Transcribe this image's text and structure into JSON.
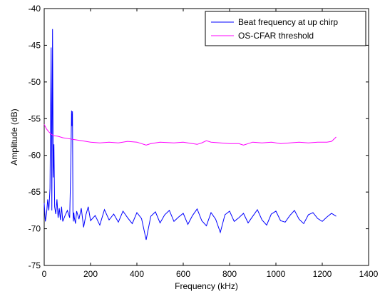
{
  "chart_data": {
    "type": "line",
    "xlabel": "Frequency (kHz)",
    "ylabel": "Amplitude (dB)",
    "xlim": [
      0,
      1400
    ],
    "ylim": [
      -75,
      -40
    ],
    "x_ticks": [
      "0",
      "200",
      "400",
      "600",
      "800",
      "1000",
      "1200",
      "1400"
    ],
    "y_ticks": [
      "-40",
      "-45",
      "-50",
      "-55",
      "-60",
      "-65",
      "-70",
      "-75"
    ],
    "grid": false,
    "legend_position": "top-right",
    "series": [
      {
        "name": "Beat frequency at up chirp",
        "color": "#0000ff",
        "x": [
          0,
          5,
          10,
          15,
          20,
          25,
          30,
          33,
          36,
          39,
          42,
          45,
          50,
          55,
          60,
          65,
          70,
          75,
          80,
          90,
          100,
          110,
          115,
          118,
          120,
          122,
          124,
          126,
          128,
          130,
          135,
          140,
          150,
          160,
          170,
          180,
          190,
          200,
          220,
          240,
          260,
          280,
          300,
          320,
          340,
          360,
          380,
          400,
          420,
          440,
          460,
          480,
          500,
          520,
          540,
          560,
          580,
          600,
          620,
          640,
          660,
          680,
          700,
          720,
          740,
          760,
          780,
          800,
          820,
          840,
          860,
          880,
          900,
          920,
          940,
          960,
          980,
          1000,
          1020,
          1040,
          1060,
          1080,
          1100,
          1120,
          1140,
          1160,
          1180,
          1200,
          1220,
          1240,
          1260
        ],
        "y": [
          -66.5,
          -69.0,
          -68.0,
          -66.0,
          -67.5,
          -64.5,
          -45.3,
          -67.5,
          -42.8,
          -63.0,
          -58.5,
          -67.0,
          -68.0,
          -66.0,
          -68.5,
          -67.2,
          -68.8,
          -67.0,
          -69.0,
          -68.2,
          -67.5,
          -68.5,
          -61.0,
          -53.9,
          -56.0,
          -54.0,
          -67.5,
          -69.0,
          -67.8,
          -68.5,
          -69.3,
          -67.6,
          -68.7,
          -67.2,
          -69.8,
          -68.1,
          -67.0,
          -68.9,
          -68.2,
          -69.5,
          -67.4,
          -68.8,
          -68.0,
          -69.1,
          -67.6,
          -68.5,
          -69.3,
          -67.8,
          -68.6,
          -71.5,
          -68.3,
          -67.7,
          -69.2,
          -68.1,
          -67.5,
          -69.0,
          -68.4,
          -67.9,
          -69.4,
          -68.2,
          -67.3,
          -68.9,
          -69.6,
          -67.8,
          -68.7,
          -70.5,
          -68.1,
          -67.6,
          -69.0,
          -68.5,
          -67.9,
          -69.2,
          -68.3,
          -67.4,
          -68.8,
          -69.5,
          -68.0,
          -67.6,
          -68.9,
          -69.1,
          -68.2,
          -67.5,
          -68.7,
          -69.3,
          -68.1,
          -67.8,
          -68.6,
          -69.0,
          -68.4,
          -67.9,
          -68.3
        ]
      },
      {
        "name": "OS-CFAR threshold",
        "color": "#ff00ff",
        "x": [
          0,
          10,
          20,
          30,
          40,
          60,
          80,
          100,
          120,
          140,
          160,
          180,
          200,
          240,
          280,
          320,
          360,
          400,
          440,
          460,
          500,
          560,
          600,
          640,
          660,
          680,
          700,
          720,
          760,
          800,
          840,
          860,
          900,
          940,
          980,
          1020,
          1060,
          1100,
          1140,
          1180,
          1220,
          1240,
          1250,
          1260
        ],
        "y": [
          -55.8,
          -56.4,
          -56.8,
          -57.1,
          -57.3,
          -57.4,
          -57.6,
          -57.7,
          -57.8,
          -57.9,
          -58.0,
          -58.1,
          -58.2,
          -58.3,
          -58.2,
          -58.3,
          -58.1,
          -58.2,
          -58.6,
          -58.4,
          -58.2,
          -58.3,
          -58.2,
          -58.4,
          -58.5,
          -58.3,
          -58.0,
          -58.2,
          -58.3,
          -58.4,
          -58.4,
          -58.6,
          -58.2,
          -58.3,
          -58.2,
          -58.4,
          -58.3,
          -58.2,
          -58.3,
          -58.2,
          -58.2,
          -58.1,
          -57.8,
          -57.5
        ]
      }
    ]
  }
}
